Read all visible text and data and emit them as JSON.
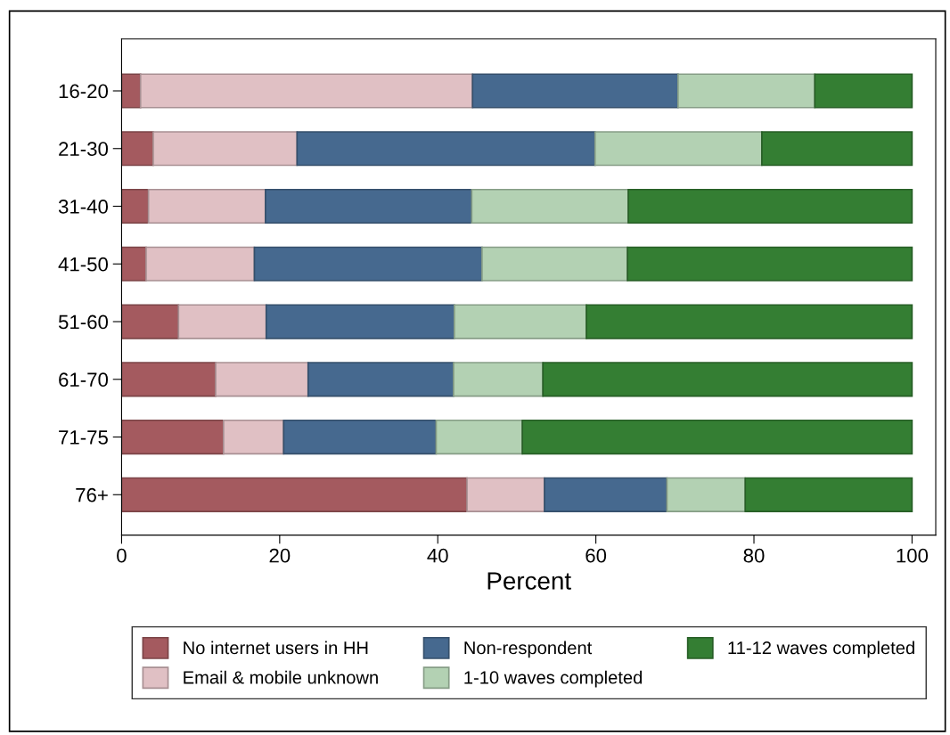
{
  "chart_data": {
    "type": "bar",
    "orientation": "horizontal",
    "stacked": true,
    "xlabel": "Percent",
    "categories": [
      "16-20",
      "21-30",
      "31-40",
      "41-50",
      "51-60",
      "61-70",
      "71-75",
      "76+"
    ],
    "series": [
      {
        "name": "No internet users in HH",
        "color": "#a45a5f",
        "values": [
          2.4,
          4.0,
          3.4,
          3.1,
          7.2,
          11.9,
          12.9,
          43.7
        ]
      },
      {
        "name": "Email & mobile unknown",
        "color": "#e0c0c4",
        "values": [
          42.0,
          18.2,
          14.8,
          13.7,
          11.1,
          11.7,
          7.6,
          9.8
        ]
      },
      {
        "name": "Non-respondent",
        "color": "#46698f",
        "values": [
          26.0,
          37.7,
          26.1,
          28.8,
          23.8,
          18.4,
          19.3,
          15.5
        ]
      },
      {
        "name": "1-10 waves completed",
        "color": "#b3d1b3",
        "values": [
          17.3,
          21.1,
          19.8,
          18.4,
          16.7,
          11.3,
          10.9,
          9.9
        ]
      },
      {
        "name": "11-12 waves completed",
        "color": "#347e33",
        "values": [
          12.3,
          19.0,
          35.9,
          36.0,
          41.2,
          46.7,
          49.3,
          21.1
        ]
      }
    ],
    "xlim": [
      0,
      103
    ],
    "xticks": [
      0,
      20,
      40,
      60,
      80,
      100
    ],
    "grid": false,
    "legend": "bottom"
  }
}
